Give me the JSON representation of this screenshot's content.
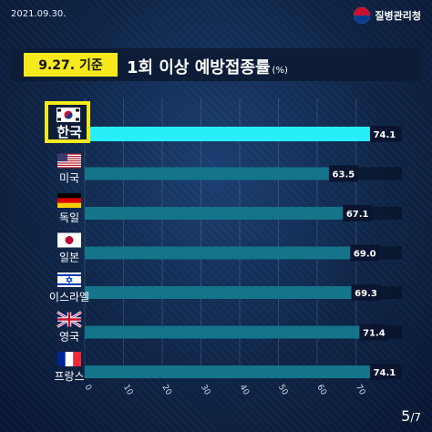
{
  "header": {
    "date": "2021.09.30.",
    "org_name": "질병관리청",
    "emblem_icon": "taegeuk-emblem-icon"
  },
  "title": {
    "badge": "9.27. 기준",
    "main": "1회 이상 예방접종률",
    "unit": "(%)"
  },
  "page": {
    "current": "5",
    "total": "7"
  },
  "colors": {
    "highlight_bar": "#28eef9",
    "bar": "#14758a",
    "badge": "#f6ea1d",
    "label_bg": "#0b1530"
  },
  "chart_data": {
    "type": "bar",
    "orientation": "horizontal",
    "categories": [
      "한국",
      "미국",
      "독일",
      "일본",
      "이스라엘",
      "영국",
      "프랑스"
    ],
    "flags": [
      "south-korea-flag-icon",
      "usa-flag-icon",
      "germany-flag-icon",
      "japan-flag-icon",
      "israel-flag-icon",
      "uk-flag-icon",
      "france-flag-icon"
    ],
    "values": [
      74.1,
      63.5,
      67.1,
      69.0,
      69.3,
      71.4,
      74.1
    ],
    "value_labels": [
      "74.1",
      "63.5",
      "67.1",
      "69.0",
      "69.3",
      "71.4",
      "74.1"
    ],
    "highlight": "한국",
    "xlim": [
      0,
      80
    ],
    "xticks": [
      "0",
      "10",
      "20",
      "30",
      "40",
      "50",
      "60",
      "70"
    ],
    "xtick_values": [
      0,
      10,
      20,
      30,
      40,
      50,
      60,
      70
    ],
    "grid": true,
    "title": "1회 이상 예방접종률",
    "xlabel": "",
    "ylabel": ""
  }
}
